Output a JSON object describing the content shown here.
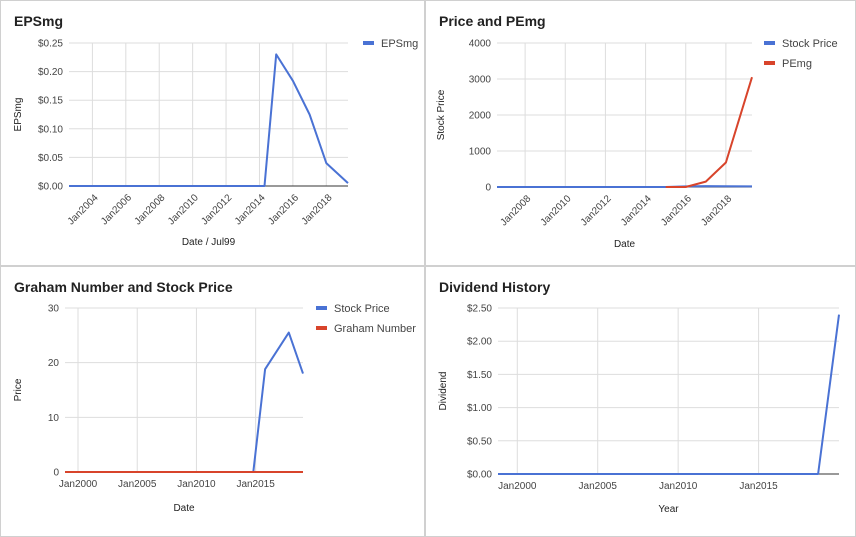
{
  "panels": [
    {
      "title": "EPSmg"
    },
    {
      "title": "Price and PEmg"
    },
    {
      "title": "Graham Number and Stock Price"
    },
    {
      "title": "Dividend History"
    }
  ],
  "chart_data": [
    {
      "type": "line",
      "title": "EPSmg",
      "xlabel": "Date / Jul99",
      "ylabel": "EPSmg",
      "xlim": [
        2002.6,
        2019.3
      ],
      "ylim": [
        0,
        0.25
      ],
      "yticks": [
        {
          "value": 0,
          "label": "$0.00"
        },
        {
          "value": 0.05,
          "label": "$0.05"
        },
        {
          "value": 0.1,
          "label": "$0.10"
        },
        {
          "value": 0.15,
          "label": "$0.15"
        },
        {
          "value": 0.2,
          "label": "$0.20"
        },
        {
          "value": 0.25,
          "label": "$0.25"
        }
      ],
      "xticks": [
        {
          "value": 2004,
          "label": "Jan2004"
        },
        {
          "value": 2006,
          "label": "Jan2006"
        },
        {
          "value": 2008,
          "label": "Jan2008"
        },
        {
          "value": 2010,
          "label": "Jan2010"
        },
        {
          "value": 2012,
          "label": "Jan2012"
        },
        {
          "value": 2014,
          "label": "Jan2014"
        },
        {
          "value": 2016,
          "label": "Jan2016"
        },
        {
          "value": 2018,
          "label": "Jan2018"
        }
      ],
      "xtick_rotate": true,
      "grid": true,
      "legend_position": "top-right",
      "series": [
        {
          "name": "EPSmg",
          "color": "#4a72d4",
          "x": [
            2002.6,
            2014.3,
            2015.0,
            2016.0,
            2017.0,
            2018.0,
            2019.3
          ],
          "y": [
            0,
            0,
            0.23,
            0.184,
            0.125,
            0.04,
            0.005
          ]
        }
      ]
    },
    {
      "type": "line",
      "title": "Price and PEmg",
      "xlabel": "Date",
      "ylabel": "Stock Price",
      "xlim": [
        2006.6,
        2019.3
      ],
      "ylim": [
        0,
        4000
      ],
      "yticks": [
        {
          "value": 0,
          "label": "0"
        },
        {
          "value": 1000,
          "label": "1000"
        },
        {
          "value": 2000,
          "label": "2000"
        },
        {
          "value": 3000,
          "label": "3000"
        },
        {
          "value": 4000,
          "label": "4000"
        }
      ],
      "xticks": [
        {
          "value": 2008,
          "label": "Jan2008"
        },
        {
          "value": 2010,
          "label": "Jan2010"
        },
        {
          "value": 2012,
          "label": "Jan2012"
        },
        {
          "value": 2014,
          "label": "Jan2014"
        },
        {
          "value": 2016,
          "label": "Jan2016"
        },
        {
          "value": 2018,
          "label": "Jan2018"
        }
      ],
      "xtick_rotate": true,
      "grid": true,
      "legend_position": "top-right",
      "series": [
        {
          "name": "Stock Price",
          "color": "#4a72d4",
          "x": [
            2006.6,
            2015.0,
            2016.0,
            2017.0,
            2018.0,
            2019.3
          ],
          "y": [
            0,
            0,
            18,
            25,
            20,
            18
          ]
        },
        {
          "name": "PEmg",
          "color": "#d8442b",
          "x": [
            2015.0,
            2016.0,
            2017.0,
            2018.0,
            2019.3
          ],
          "y": [
            0,
            0,
            150,
            680,
            3050
          ]
        }
      ]
    },
    {
      "type": "line",
      "title": "Graham Number and Stock Price",
      "xlabel": "Date",
      "ylabel": "Price",
      "xlim": [
        1998.9,
        2019.0
      ],
      "ylim": [
        0,
        30
      ],
      "yticks": [
        {
          "value": 0,
          "label": "0"
        },
        {
          "value": 10,
          "label": "10"
        },
        {
          "value": 20,
          "label": "20"
        },
        {
          "value": 30,
          "label": "30"
        }
      ],
      "xticks": [
        {
          "value": 2000,
          "label": "Jan2000"
        },
        {
          "value": 2005,
          "label": "Jan2005"
        },
        {
          "value": 2010,
          "label": "Jan2010"
        },
        {
          "value": 2015,
          "label": "Jan2015"
        }
      ],
      "xtick_rotate": false,
      "grid": true,
      "legend_position": "top-right",
      "series": [
        {
          "name": "Stock Price",
          "color": "#4a72d4",
          "x": [
            1998.9,
            2014.8,
            2015.8,
            2017.8,
            2019.0
          ],
          "y": [
            0,
            0,
            18.8,
            25.5,
            18.0
          ]
        },
        {
          "name": "Graham Number",
          "color": "#d8442b",
          "x": [
            1998.9,
            2019.0
          ],
          "y": [
            0,
            0
          ]
        }
      ]
    },
    {
      "type": "line",
      "title": "Dividend History",
      "xlabel": "Year",
      "ylabel": "Dividend",
      "xlim": [
        1998.8,
        2020.0
      ],
      "ylim": [
        0,
        2.5
      ],
      "yticks": [
        {
          "value": 0,
          "label": "$0.00"
        },
        {
          "value": 0.5,
          "label": "$0.50"
        },
        {
          "value": 1.0,
          "label": "$1.00"
        },
        {
          "value": 1.5,
          "label": "$1.50"
        },
        {
          "value": 2.0,
          "label": "$2.00"
        },
        {
          "value": 2.5,
          "label": "$2.50"
        }
      ],
      "xticks": [
        {
          "value": 2000,
          "label": "Jan2000"
        },
        {
          "value": 2005,
          "label": "Jan2005"
        },
        {
          "value": 2010,
          "label": "Jan2010"
        },
        {
          "value": 2015,
          "label": "Jan2015"
        }
      ],
      "xtick_rotate": false,
      "grid": true,
      "legend_position": "none",
      "series": [
        {
          "color": "#4a72d4",
          "x": [
            1998.8,
            2018.7,
            2020.0
          ],
          "y": [
            0,
            0,
            2.4
          ]
        }
      ]
    }
  ]
}
